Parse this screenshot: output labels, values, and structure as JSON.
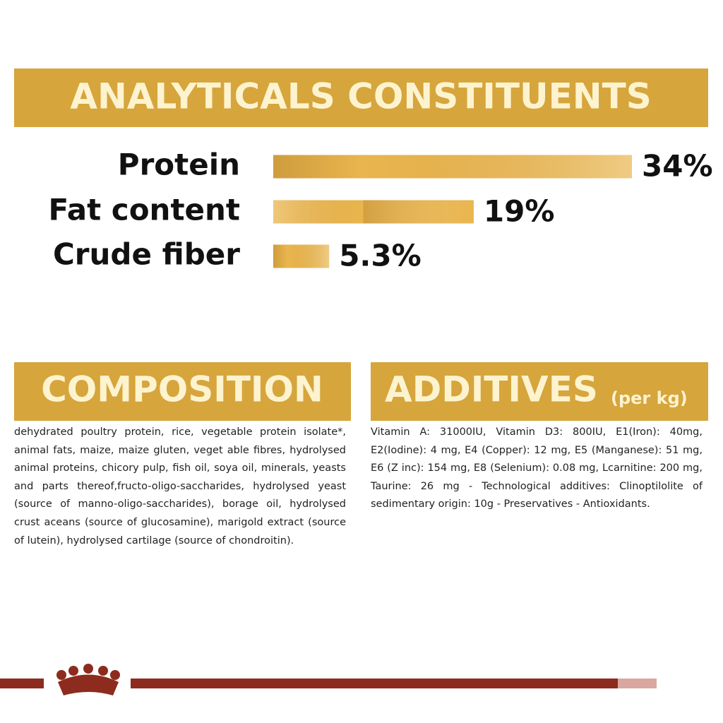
{
  "chart_data": {
    "type": "bar",
    "orientation": "horizontal",
    "title": "ANALYTICALS CONSTITUENTS",
    "categories": [
      "Protein",
      "Fat content",
      "Crude fiber"
    ],
    "values": [
      34,
      19,
      5.3
    ],
    "value_labels": [
      "34%",
      "19%",
      "5.3%"
    ],
    "color": "#e9b54e"
  },
  "composition": {
    "title": "COMPOSITION",
    "text": "dehydrated poultry protein, rice, vegetable protein isolate*, animal fats, maize, maize gluten, veget able fibres, hydrolysed animal proteins, chicory pulp, fish oil, soya oil, minerals, yeasts and parts thereof,fructo-oligo-saccharides, hydrolysed yeast (source of manno-oligo-saccharides), borage oil, hydrolysed crust aceans (source of glucosamine), marigold extract (source of lutein), hydrolysed cartilage (source of chondroitin)."
  },
  "additives": {
    "title": "ADDITIVES",
    "subtitle": "(per kg)",
    "text": "Vitamin A: 31000IU, Vitamin D3: 800IU, E1(Iron): 40mg, E2(Iodine): 4 mg, E4 (Copper): 12 mg, E5 (Manganese): 51 mg, E6 (Z inc): 154 mg, E8 (Selenium): 0.08 mg, Lcarnitine: 200 mg, Taurine: 26 mg - Technological additives: Clinoptilolite of sedimentary origin: 10g - Preservatives - Antioxidants."
  }
}
